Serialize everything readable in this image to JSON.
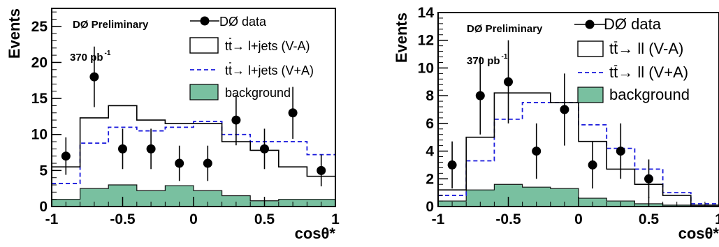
{
  "colors": {
    "data": "#000000",
    "va": "#000000",
    "vpa": "#1a1adc",
    "background": "#79c0a0"
  },
  "chart_data": [
    {
      "type": "histogram",
      "experiment_label": "DØ Preliminary",
      "luminosity": "370 pb",
      "luminosity_exp": "-1",
      "xlabel": "cosθ*",
      "ylabel": "Events",
      "xlim": [
        -1,
        1
      ],
      "ylim": [
        0,
        27.5
      ],
      "xticks": [
        -1,
        -0.5,
        0,
        0.5,
        1
      ],
      "xtick_labels": [
        "-1",
        "-0.5",
        "0",
        "0.5",
        "1"
      ],
      "yticks": [
        0,
        5,
        10,
        15,
        20,
        25
      ],
      "ytick_labels": [
        "0",
        "5",
        "10",
        "15",
        "20",
        "25"
      ],
      "bin_edges": [
        -1,
        -0.8,
        -0.6,
        -0.4,
        -0.2,
        0,
        0.2,
        0.4,
        0.6,
        0.8,
        1
      ],
      "legend": {
        "data": "DØ data",
        "va_pre": "tt",
        "va_post": "→ l+jets (V-A)",
        "vpa_pre": "tt",
        "vpa_post": "→ l+jets (V+A)",
        "background": "background"
      },
      "series": [
        {
          "key": "va",
          "values": [
            5.5,
            12.3,
            14.0,
            12.0,
            11.5,
            11.5,
            9.0,
            7.8,
            5.5,
            4.2
          ]
        },
        {
          "key": "vpa",
          "values": [
            3.2,
            8.8,
            11.0,
            10.5,
            11.0,
            11.8,
            10.0,
            9.0,
            9.0,
            7.2
          ]
        },
        {
          "key": "background",
          "values": [
            1.0,
            2.5,
            3.0,
            2.2,
            2.9,
            2.2,
            1.5,
            0.8,
            1.0,
            1.0
          ]
        },
        {
          "key": "data",
          "x": [
            -0.9,
            -0.7,
            -0.5,
            -0.3,
            -0.1,
            0.1,
            0.3,
            0.5,
            0.7,
            0.9
          ],
          "y": [
            7,
            18,
            8,
            8,
            6,
            6,
            12,
            8,
            13,
            5
          ],
          "err": [
            2.6,
            4.2,
            2.8,
            2.8,
            2.45,
            2.45,
            3.5,
            2.8,
            3.6,
            2.2
          ]
        }
      ]
    },
    {
      "type": "histogram",
      "experiment_label": "DØ Preliminary",
      "luminosity": "370 pb",
      "luminosity_exp": "-1",
      "xlabel": "cosθ*",
      "ylabel": "Events",
      "xlim": [
        -1,
        1
      ],
      "ylim": [
        0,
        14
      ],
      "xticks": [
        -1,
        -0.5,
        0,
        0.5,
        1
      ],
      "xtick_labels": [
        "-1",
        "-0.5",
        "0",
        "0.5",
        "1"
      ],
      "yticks": [
        0,
        2,
        4,
        6,
        8,
        10,
        12,
        14
      ],
      "ytick_labels": [
        "0",
        "2",
        "4",
        "6",
        "8",
        "10",
        "12",
        "14"
      ],
      "bin_edges": [
        -1,
        -0.8,
        -0.6,
        -0.4,
        -0.2,
        0,
        0.2,
        0.4,
        0.6,
        0.8,
        1
      ],
      "legend": {
        "data": "DØ data",
        "va_pre": "tt",
        "va_post": "→ ll (V-A)",
        "vpa_pre": "tt",
        "vpa_post": "→ ll (V+A)",
        "background": "background"
      },
      "series": [
        {
          "key": "va",
          "values": [
            1.2,
            5.0,
            8.2,
            8.2,
            7.5,
            4.7,
            2.7,
            1.6,
            0.8,
            0.1
          ]
        },
        {
          "key": "vpa",
          "values": [
            0.8,
            3.3,
            6.3,
            7.5,
            7.5,
            5.9,
            4.2,
            2.7,
            1.0,
            0.2
          ]
        },
        {
          "key": "background",
          "values": [
            0.4,
            1.2,
            1.6,
            1.4,
            1.3,
            0.6,
            0.4,
            0.2,
            0.1,
            0.0
          ]
        },
        {
          "key": "data",
          "x": [
            -0.9,
            -0.7,
            -0.5,
            -0.3,
            -0.1,
            0.1,
            0.3,
            0.5
          ],
          "y": [
            3,
            8,
            9,
            4,
            7,
            3,
            4,
            2
          ],
          "err": [
            1.7,
            2.8,
            3.0,
            2.0,
            2.6,
            1.7,
            2.0,
            1.4
          ]
        }
      ]
    }
  ]
}
